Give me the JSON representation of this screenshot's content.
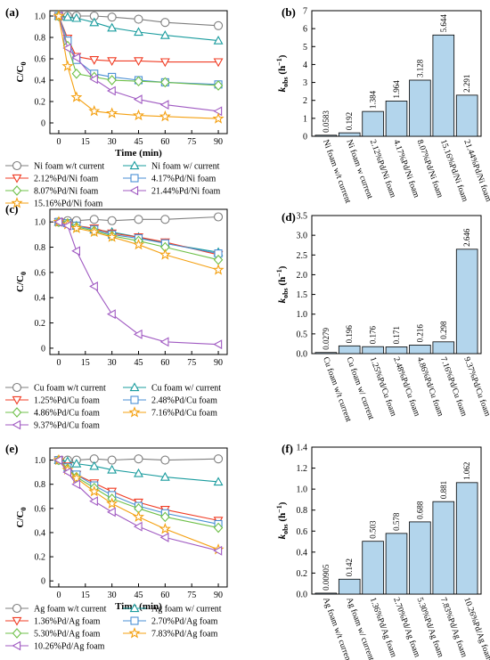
{
  "panels": [
    {
      "letter": "(a)",
      "chart_data": {
        "type": "line",
        "ylabel": "C/C",
        "ylabel_sub": "0",
        "xlabel": "Time (min)",
        "x": [
          0,
          5,
          10,
          20,
          30,
          45,
          60,
          90
        ],
        "xticks": [
          0,
          15,
          30,
          45,
          60,
          75,
          90
        ],
        "ylim": [
          -0.1,
          1.05
        ],
        "yticks": [
          0,
          0.2,
          0.4,
          0.6,
          0.8,
          1.0
        ],
        "series": [
          {
            "name": "Ni foam w/t current",
            "color": "#7f7f7f",
            "marker": "circle",
            "values": [
              1.0,
              1.0,
              1.0,
              1.0,
              0.99,
              0.97,
              0.94,
              0.91
            ]
          },
          {
            "name": "Ni foam w/ current",
            "color": "#1a9c9e",
            "marker": "triangle-up",
            "values": [
              1.0,
              0.99,
              0.98,
              0.94,
              0.89,
              0.85,
              0.82,
              0.77
            ]
          },
          {
            "name": "2.12%Pd/Ni foam",
            "color": "#f03c24",
            "marker": "triangle-down",
            "values": [
              1.0,
              0.79,
              0.62,
              0.59,
              0.58,
              0.58,
              0.57,
              0.57
            ]
          },
          {
            "name": "4.17%Pd/Ni foam",
            "color": "#4a8fd4",
            "marker": "square",
            "values": [
              1.0,
              0.77,
              0.59,
              0.46,
              0.43,
              0.4,
              0.38,
              0.36
            ]
          },
          {
            "name": "8.07%Pd/Ni foam",
            "color": "#6fc04a",
            "marker": "diamond",
            "values": [
              1.0,
              0.72,
              0.46,
              0.43,
              0.4,
              0.39,
              0.38,
              0.35
            ]
          },
          {
            "name": "21.44%Pd/Ni foam",
            "color": "#a05ac2",
            "marker": "triangle-left",
            "values": [
              1.0,
              0.7,
              0.61,
              0.41,
              0.3,
              0.22,
              0.17,
              0.11
            ]
          },
          {
            "name": "15.16%Pd/Ni foam",
            "color": "#f4a011",
            "marker": "star",
            "values": [
              1.0,
              0.53,
              0.24,
              0.11,
              0.09,
              0.07,
              0.06,
              0.04
            ]
          }
        ]
      }
    },
    {
      "letter": "(b)",
      "chart_data": {
        "type": "bar",
        "ylabel": "k",
        "ylabel_sub": "obs",
        "ylabel_unit": " (h",
        "ylabel_sup": "−1",
        "ylabel_end": ")",
        "categories": [
          "Ni foam w/t current",
          "Ni foam w current",
          "2.12%Pd/Ni foam",
          "4.17%Pd/Ni foam",
          "8.07%Pd/Ni foam",
          "15.16%Pd/Ni foam",
          "21.44%Pd/Ni foam"
        ],
        "values": [
          0.0583,
          0.192,
          1.384,
          1.964,
          3.128,
          5.644,
          2.291
        ],
        "value_labels": [
          "0.0583",
          "0.192",
          "1.384",
          "1.964",
          "3.128",
          "5.644",
          "2.291"
        ],
        "ylim": [
          0,
          7
        ],
        "yticks": [
          0,
          1,
          2,
          3,
          4,
          5,
          6,
          7
        ],
        "ytick_labels": [
          "0",
          "1",
          "2",
          "3",
          "4",
          "5",
          "6",
          "7"
        ]
      }
    },
    {
      "letter": "(c)",
      "chart_data": {
        "type": "line",
        "ylabel": "C/C",
        "ylabel_sub": "0",
        "xlabel": "",
        "x": [
          0,
          5,
          10,
          20,
          30,
          45,
          60,
          90
        ],
        "xticks": [
          0,
          15,
          30,
          45,
          60,
          75,
          90
        ],
        "ylim": [
          -0.05,
          1.1
        ],
        "yticks": [
          0,
          0.2,
          0.4,
          0.6,
          0.8,
          1.0
        ],
        "series": [
          {
            "name": "Cu foam w/t current",
            "color": "#7f7f7f",
            "marker": "circle",
            "values": [
              1.0,
              1.01,
              1.01,
              1.02,
              1.01,
              1.02,
              1.02,
              1.04
            ]
          },
          {
            "name": "Cu foam w/ current",
            "color": "#1a9c9e",
            "marker": "triangle-up",
            "values": [
              1.0,
              0.99,
              0.97,
              0.94,
              0.92,
              0.88,
              0.83,
              0.76
            ]
          },
          {
            "name": "1.25%Pd/Cu foam",
            "color": "#f03c24",
            "marker": "triangle-down",
            "values": [
              1.0,
              0.99,
              0.97,
              0.95,
              0.91,
              0.88,
              0.84,
              0.74
            ]
          },
          {
            "name": "2.48%Pd/Cu foam",
            "color": "#4a8fd4",
            "marker": "square",
            "values": [
              1.0,
              0.99,
              0.97,
              0.94,
              0.9,
              0.87,
              0.83,
              0.75
            ]
          },
          {
            "name": "4.86%Pd/Cu foam",
            "color": "#6fc04a",
            "marker": "diamond",
            "values": [
              1.0,
              0.99,
              0.96,
              0.93,
              0.89,
              0.85,
              0.8,
              0.7
            ]
          },
          {
            "name": "7.16%Pd/Cu foam",
            "color": "#f4a011",
            "marker": "star",
            "values": [
              1.0,
              0.98,
              0.95,
              0.92,
              0.88,
              0.82,
              0.74,
              0.62
            ]
          },
          {
            "name": "9.37%Pd/Cu foam",
            "color": "#a05ac2",
            "marker": "triangle-left",
            "values": [
              1.0,
              0.97,
              0.77,
              0.49,
              0.27,
              0.11,
              0.05,
              0.03
            ]
          }
        ]
      }
    },
    {
      "letter": "(d)",
      "chart_data": {
        "type": "bar",
        "ylabel": "k",
        "ylabel_sub": "obs",
        "ylabel_unit": " (h",
        "ylabel_sup": "−1",
        "ylabel_end": ")",
        "categories": [
          "Cu foam w/t current",
          "Cu foam w/ current",
          "1.25%Pd/Cu foam",
          "2.48%Pd/Cu foam",
          "4.86%Pd/Cu foam",
          "7.16%Pd/Cu foam",
          "9.37%Pd/Cu foam"
        ],
        "values": [
          0.0279,
          0.196,
          0.176,
          0.171,
          0.216,
          0.298,
          2.646
        ],
        "value_labels": [
          "0.0279",
          "0.196",
          "0.176",
          "0.171",
          "0.216",
          "0.298",
          "2.646"
        ],
        "ylim": [
          0,
          3.5
        ],
        "yticks": [
          0,
          0.5,
          1.0,
          1.5,
          2.0,
          2.5,
          3.0,
          3.5
        ],
        "ytick_labels": [
          "0.0",
          "0.5",
          "1.0",
          "1.5",
          "2.0",
          "2.5",
          "3.0",
          "3.5"
        ]
      }
    },
    {
      "letter": "(e)",
      "chart_data": {
        "type": "line",
        "ylabel": "C/C",
        "ylabel_sub": "0",
        "xlabel": "Time (min)",
        "x": [
          0,
          5,
          10,
          20,
          30,
          45,
          60,
          90
        ],
        "xticks": [
          0,
          15,
          30,
          45,
          60,
          75,
          90
        ],
        "ylim": [
          -0.05,
          1.1
        ],
        "yticks": [
          0,
          0.2,
          0.4,
          0.6,
          0.8,
          1.0
        ],
        "series": [
          {
            "name": "Ag foam w/t current",
            "color": "#7f7f7f",
            "marker": "circle",
            "values": [
              1.0,
              1.0,
              1.0,
              1.01,
              1.0,
              1.01,
              1.0,
              1.01
            ]
          },
          {
            "name": "Ag foam w/ current",
            "color": "#1a9c9e",
            "marker": "triangle-up",
            "values": [
              1.0,
              0.99,
              0.97,
              0.95,
              0.92,
              0.89,
              0.86,
              0.82
            ]
          },
          {
            "name": "1.36%Pd/Ag foam",
            "color": "#f03c24",
            "marker": "triangle-down",
            "values": [
              1.0,
              0.95,
              0.88,
              0.81,
              0.74,
              0.65,
              0.59,
              0.5
            ]
          },
          {
            "name": "2.70%Pd/Ag foam",
            "color": "#4a8fd4",
            "marker": "square",
            "values": [
              1.0,
              0.94,
              0.88,
              0.79,
              0.71,
              0.62,
              0.56,
              0.47
            ]
          },
          {
            "name": "5.30%Pd/Ag foam",
            "color": "#6fc04a",
            "marker": "diamond",
            "values": [
              1.0,
              0.93,
              0.86,
              0.77,
              0.68,
              0.6,
              0.53,
              0.44
            ]
          },
          {
            "name": "7.83%Pd/Ag foam",
            "color": "#f4a011",
            "marker": "star",
            "values": [
              1.0,
              0.92,
              0.85,
              0.74,
              0.64,
              0.53,
              0.43,
              0.26
            ]
          },
          {
            "name": "10.26%Pd/Ag foam",
            "color": "#a05ac2",
            "marker": "triangle-left",
            "values": [
              1.0,
              0.9,
              0.8,
              0.66,
              0.57,
              0.45,
              0.36,
              0.25
            ]
          }
        ]
      }
    },
    {
      "letter": "(f)",
      "chart_data": {
        "type": "bar",
        "ylabel": "k",
        "ylabel_sub": "obs",
        "ylabel_unit": " (h",
        "ylabel_sup": "−1",
        "ylabel_end": ")",
        "categories": [
          "Ag foam w/t current",
          "Ag foam w/ current",
          "1.36%Pd/Ag foam",
          "2.70%Pd/Ag foam",
          "5.30%Pd/Ag foam",
          "7.83%Pd/Ag foam",
          "10.26%Pd/Ag foam"
        ],
        "values": [
          0.00905,
          0.142,
          0.503,
          0.578,
          0.688,
          0.881,
          1.062
        ],
        "value_labels": [
          "0.00905",
          "0.142",
          "0.503",
          "0.578",
          "0.688",
          "0.881",
          "1.062"
        ],
        "ylim": [
          0,
          1.4
        ],
        "yticks": [
          0,
          0.2,
          0.4,
          0.6,
          0.8,
          1.0,
          1.2,
          1.4
        ],
        "ytick_labels": [
          "0.0",
          "0.2",
          "0.4",
          "0.6",
          "0.8",
          "1.0",
          "1.2",
          "1.4"
        ]
      }
    }
  ]
}
